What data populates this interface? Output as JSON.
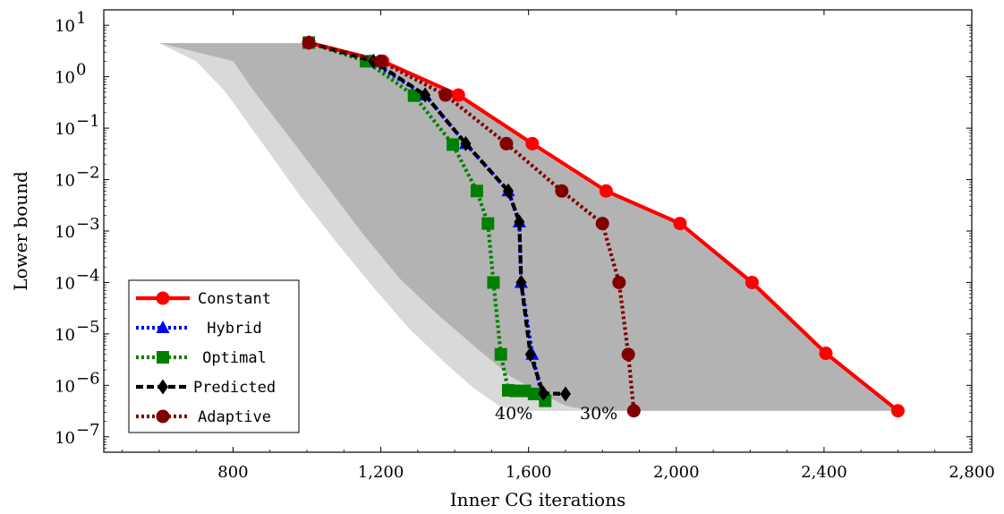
{
  "chart_data": {
    "type": "line",
    "xlabel": "Inner CG iterations",
    "ylabel": "Lower bound",
    "xlim": [
      450,
      2800
    ],
    "ylim_log10": [
      -7.3,
      1.3
    ],
    "y_scale": "log",
    "grid": false,
    "legend_position": "bottom-left",
    "x_ticks": [
      800,
      1200,
      1600,
      2000,
      2400,
      2800
    ],
    "x_tick_labels": [
      "800",
      "1,200",
      "1,600",
      "2,000",
      "2,400",
      "2,800"
    ],
    "y_ticks": [
      1,
      0,
      -1,
      -2,
      -3,
      -4,
      -5,
      -6,
      -7
    ],
    "y_tick_labels": [
      {
        "base": "10",
        "exp": "1"
      },
      {
        "base": "10",
        "exp": "0"
      },
      {
        "base": "10",
        "exp": "−1"
      },
      {
        "base": "10",
        "exp": "−2"
      },
      {
        "base": "10",
        "exp": "−3"
      },
      {
        "base": "10",
        "exp": "−4"
      },
      {
        "base": "10",
        "exp": "−5"
      },
      {
        "base": "10",
        "exp": "−6"
      },
      {
        "base": "10",
        "exp": "−7"
      }
    ],
    "bands": [
      {
        "label": "30%",
        "color": "#b3b3b3",
        "upper_x": [
          600,
          1000,
          1200,
          1400,
          1600,
          1800,
          2000,
          2200,
          2400,
          2600,
          2600
        ],
        "upper_y": [
          4.5,
          4.5,
          2.0,
          0.45,
          0.05,
          0.006,
          0.0014,
          0.0001,
          4.2e-06,
          3.2e-07,
          3.2e-07
        ],
        "lower_x": [
          600,
          800,
          850,
          950,
          1050,
          1150,
          1250,
          1350,
          1450,
          1550,
          1650,
          1700,
          1750,
          1800
        ],
        "lower_y": [
          4.5,
          2.0,
          0.6,
          0.07,
          0.008,
          0.0009,
          0.00012,
          2.5e-05,
          6e-06,
          1.5e-06,
          6e-07,
          4e-07,
          3.4e-07,
          3.2e-07
        ]
      },
      {
        "label": "40%",
        "color": "#d9d9d9",
        "upper_x": [
          600,
          800,
          850,
          950,
          1050,
          1150,
          1250,
          1350,
          1450,
          1550,
          1650,
          1700,
          1750,
          1800
        ],
        "upper_y": [
          4.5,
          2.0,
          0.6,
          0.07,
          0.008,
          0.0009,
          0.00012,
          2.5e-05,
          6e-06,
          1.5e-06,
          6e-07,
          4e-07,
          3.4e-07,
          3.2e-07
        ],
        "lower_x": [
          600,
          700,
          780,
          880,
          980,
          1080,
          1180,
          1280,
          1380,
          1450,
          1520,
          1560,
          1600
        ],
        "lower_y": [
          4.5,
          2.0,
          0.5,
          0.05,
          0.005,
          0.0006,
          8e-05,
          1.2e-05,
          2.5e-06,
          9e-07,
          4e-07,
          3.3e-07,
          3.2e-07
        ]
      }
    ],
    "series": [
      {
        "name": "Constant",
        "color": "#ff0000",
        "dash": "solid",
        "marker": "circle",
        "x": [
          1005,
          1205,
          1410,
          1610,
          1810,
          2010,
          2205,
          2405,
          2600
        ],
        "y": [
          4.6,
          2.0,
          0.44,
          0.05,
          0.006,
          0.0014,
          0.0001,
          4.2e-06,
          3.2e-07
        ]
      },
      {
        "name": "Hybrid",
        "color": "#0000ff",
        "dash": "dotted",
        "marker": "triangle",
        "x": [
          1005,
          1170,
          1320,
          1430,
          1545,
          1575,
          1580,
          1610,
          1635
        ],
        "y": [
          4.6,
          2.0,
          0.44,
          0.05,
          0.006,
          0.0015,
          0.0001,
          4e-06,
          7e-07
        ]
      },
      {
        "name": "Optimal",
        "color": "#008000",
        "dash": "dotted",
        "marker": "square",
        "x": [
          1005,
          1160,
          1290,
          1395,
          1460,
          1490,
          1505,
          1525,
          1545,
          1565,
          1590,
          1615,
          1645
        ],
        "y": [
          4.6,
          2.0,
          0.43,
          0.048,
          0.006,
          0.0014,
          0.0001,
          4e-06,
          8e-07,
          7.8e-07,
          7.8e-07,
          6.8e-07,
          5e-07
        ]
      },
      {
        "name": "Predicted",
        "color": "#000000",
        "dash": "dashed",
        "marker": "diamond",
        "x": [
          1005,
          1180,
          1320,
          1430,
          1545,
          1575,
          1580,
          1605,
          1640,
          1700
        ],
        "y": [
          4.6,
          2.0,
          0.44,
          0.05,
          0.006,
          0.0015,
          0.0001,
          4e-06,
          7e-07,
          6.8e-07
        ]
      },
      {
        "name": "Adaptive",
        "color": "#800000",
        "dash": "dotted",
        "marker": "circle",
        "x": [
          1005,
          1200,
          1375,
          1540,
          1690,
          1800,
          1845,
          1870,
          1885
        ],
        "y": [
          4.6,
          2.0,
          0.44,
          0.05,
          0.006,
          0.0014,
          0.0001,
          4e-06,
          3.2e-07
        ]
      }
    ],
    "annotations": [
      {
        "text": "40%",
        "x": 1560,
        "y": 3.3e-07
      },
      {
        "text": "30%",
        "x": 1790,
        "y": 3.3e-07
      }
    ]
  }
}
